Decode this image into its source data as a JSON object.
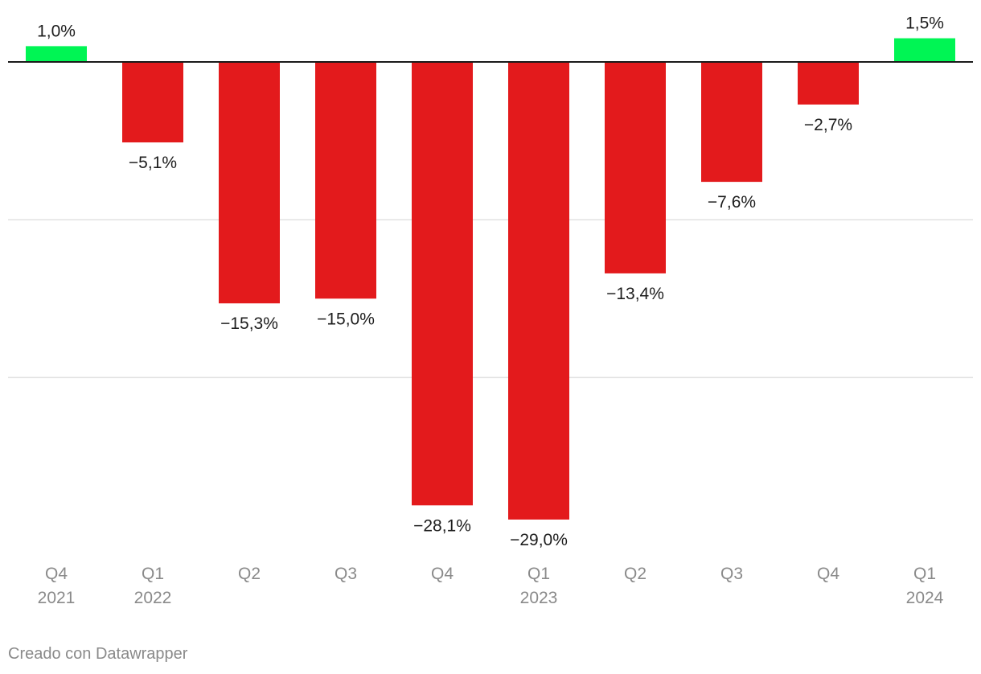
{
  "chart_data": {
    "type": "bar",
    "categories": [
      {
        "quarter": "Q4",
        "year": "2021"
      },
      {
        "quarter": "Q1",
        "year": "2022"
      },
      {
        "quarter": "Q2",
        "year": ""
      },
      {
        "quarter": "Q3",
        "year": ""
      },
      {
        "quarter": "Q4",
        "year": ""
      },
      {
        "quarter": "Q1",
        "year": "2023"
      },
      {
        "quarter": "Q2",
        "year": ""
      },
      {
        "quarter": "Q3",
        "year": ""
      },
      {
        "quarter": "Q4",
        "year": ""
      },
      {
        "quarter": "Q1",
        "year": "2024"
      }
    ],
    "values": [
      1.0,
      -5.1,
      -15.3,
      -15.0,
      -28.1,
      -29.0,
      -13.4,
      -7.6,
      -2.7,
      1.5
    ],
    "value_labels": [
      "1,0%",
      "−5,1%",
      "−15,3%",
      "−15,0%",
      "−28,1%",
      "−29,0%",
      "−13,4%",
      "−7,6%",
      "−2,7%",
      "1,5%"
    ],
    "title": "",
    "xlabel": "",
    "ylabel": "",
    "ylim": [
      -30,
      2
    ],
    "gridlines": [
      -10,
      -20
    ],
    "colors": {
      "positive": "#00f554",
      "negative": "#e31a1c"
    }
  },
  "footer": {
    "credit": "Creado con Datawrapper"
  }
}
